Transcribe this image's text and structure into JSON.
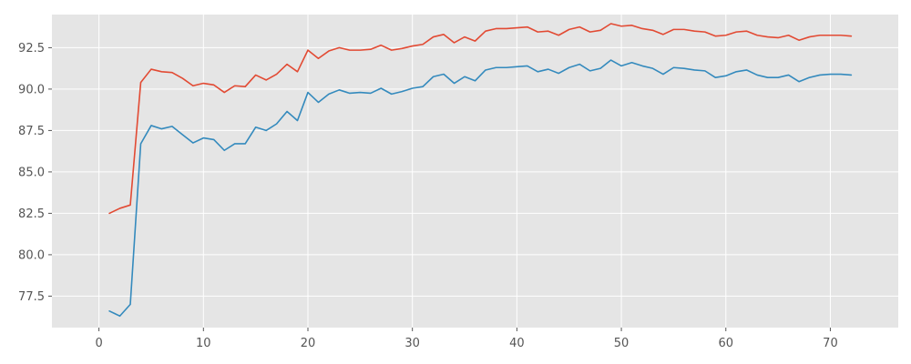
{
  "chart_data": {
    "type": "line",
    "title": "",
    "xlabel": "",
    "ylabel": "",
    "xlim": [
      -4.5,
      76.5
    ],
    "ylim": [
      75.6,
      94.5
    ],
    "grid": true,
    "legend": "none",
    "x_ticks": [
      0,
      10,
      20,
      30,
      40,
      50,
      60,
      70
    ],
    "y_ticks": [
      77.5,
      80.0,
      82.5,
      85.0,
      87.5,
      90.0,
      92.5
    ],
    "x_tick_labels": [
      "0",
      "10",
      "20",
      "30",
      "40",
      "50",
      "60",
      "70"
    ],
    "y_tick_labels": [
      "77.5",
      "80.0",
      "82.5",
      "85.0",
      "87.5",
      "90.0",
      "92.5"
    ],
    "colors": {
      "background": "#e5e5e5",
      "grid": "#ffffff",
      "series_1": "#e24a33",
      "series_2": "#348abd"
    },
    "x": [
      1,
      2,
      3,
      4,
      5,
      6,
      7,
      8,
      9,
      10,
      11,
      12,
      13,
      14,
      15,
      16,
      17,
      18,
      19,
      20,
      21,
      22,
      23,
      24,
      25,
      26,
      27,
      28,
      29,
      30,
      31,
      32,
      33,
      34,
      35,
      36,
      37,
      38,
      39,
      40,
      41,
      42,
      43,
      44,
      45,
      46,
      47,
      48,
      49,
      50,
      51,
      52,
      53,
      54,
      55,
      56,
      57,
      58,
      59,
      60,
      61,
      62,
      63,
      64,
      65,
      66,
      67,
      68,
      69,
      70,
      71,
      72
    ],
    "series": [
      {
        "color": "#e24a33",
        "values": [
          82.5,
          82.8,
          83.0,
          90.4,
          91.2,
          91.05,
          91.0,
          90.65,
          90.2,
          90.35,
          90.25,
          89.8,
          90.2,
          90.15,
          90.85,
          90.55,
          90.9,
          91.5,
          91.05,
          92.35,
          91.85,
          92.3,
          92.5,
          92.35,
          92.35,
          92.4,
          92.65,
          92.35,
          92.45,
          92.6,
          92.7,
          93.15,
          93.3,
          92.8,
          93.15,
          92.9,
          93.5,
          93.65,
          93.65,
          93.7,
          93.75,
          93.45,
          93.5,
          93.25,
          93.6,
          93.75,
          93.45,
          93.55,
          93.95,
          93.8,
          93.85,
          93.65,
          93.55,
          93.3,
          93.6,
          93.6,
          93.5,
          93.45,
          93.2,
          93.25,
          93.45,
          93.5,
          93.25,
          93.15,
          93.1,
          93.25,
          92.95,
          93.15,
          93.25,
          93.25,
          93.25,
          93.2
        ]
      },
      {
        "color": "#348abd",
        "values": [
          76.6,
          76.3,
          77.0,
          86.7,
          87.8,
          87.6,
          87.75,
          87.25,
          86.75,
          87.05,
          86.95,
          86.3,
          86.7,
          86.7,
          87.7,
          87.5,
          87.9,
          88.65,
          88.1,
          89.8,
          89.2,
          89.7,
          89.95,
          89.75,
          89.8,
          89.75,
          90.05,
          89.7,
          89.85,
          90.05,
          90.15,
          90.75,
          90.9,
          90.35,
          90.75,
          90.5,
          91.15,
          91.3,
          91.3,
          91.35,
          91.4,
          91.05,
          91.2,
          90.95,
          91.3,
          91.5,
          91.1,
          91.25,
          91.75,
          91.4,
          91.6,
          91.4,
          91.25,
          90.9,
          91.3,
          91.25,
          91.15,
          91.1,
          90.7,
          90.8,
          91.05,
          91.15,
          90.85,
          90.7,
          90.7,
          90.85,
          90.45,
          90.7,
          90.85,
          90.9,
          90.9,
          90.85
        ]
      }
    ]
  }
}
